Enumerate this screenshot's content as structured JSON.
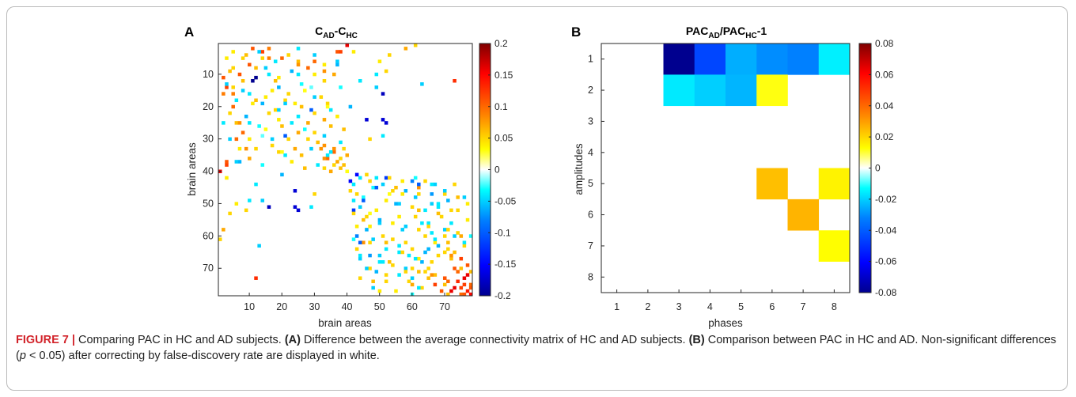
{
  "figure": {
    "panel_a_letter": "A",
    "panel_b_letter": "B",
    "caption": {
      "figure_label": "FIGURE 7 |",
      "intro": " Comparing PAC in HC and AD subjects. ",
      "part_a_label": "(A)",
      "part_a_text": " Difference between the average connectivity matrix of HC and AD subjects. ",
      "part_b_label": "(B)",
      "part_b_text_1": " Comparison between PAC in HC and AD. Non-significant differences (",
      "p_symbol": "p",
      "part_b_text_2": " < 0.05) after correcting by false-discovery rate are displayed in white."
    }
  },
  "chart_data": [
    {
      "panel": "A",
      "type": "heatmap",
      "title_main": "C",
      "title_sub1": "AD",
      "title_mid": "-C",
      "title_sub2": "HC",
      "xlabel": "brain areas",
      "ylabel": "brain areas",
      "xlim": [
        0.5,
        78.5
      ],
      "ylim": [
        0.5,
        78.5
      ],
      "x_ticks": [
        "10",
        "20",
        "30",
        "40",
        "50",
        "60",
        "70"
      ],
      "y_ticks": [
        "10",
        "20",
        "30",
        "40",
        "50",
        "60",
        "70"
      ],
      "colorbar_ticks": [
        "0.2",
        "0.15",
        "0.1",
        "0.05",
        "0",
        "-0.05",
        "-0.1",
        "-0.15",
        "-0.2"
      ],
      "clim": [
        -0.2,
        0.2
      ],
      "colormap": "jet-white-center",
      "note": "78x78 symmetric difference matrix; non-significant entries white",
      "cells": [
        [
          11,
          12,
          -0.2
        ],
        [
          2,
          11,
          0.11
        ],
        [
          3,
          14,
          0.12
        ],
        [
          5,
          16,
          0.09
        ],
        [
          7,
          10,
          0.11
        ],
        [
          4,
          22,
          0.05
        ],
        [
          6,
          25,
          0.06
        ],
        [
          8,
          28,
          0.1
        ],
        [
          9,
          33,
          0.08
        ],
        [
          10,
          36,
          0.07
        ],
        [
          1,
          40,
          0.16
        ],
        [
          3,
          38,
          0.12
        ],
        [
          6,
          30,
          0.1
        ],
        [
          12,
          8,
          0.06
        ],
        [
          14,
          5,
          0.05
        ],
        [
          15,
          17,
          0.04
        ],
        [
          18,
          21,
          0.05
        ],
        [
          20,
          26,
          0.06
        ],
        [
          22,
          30,
          0.05
        ],
        [
          24,
          33,
          0.07
        ],
        [
          26,
          35,
          0.06
        ],
        [
          28,
          30,
          0.05
        ],
        [
          30,
          28,
          0.06
        ],
        [
          32,
          33,
          0.08
        ],
        [
          34,
          36,
          0.1
        ],
        [
          36,
          38,
          0.05
        ],
        [
          13,
          3,
          -0.05
        ],
        [
          16,
          10,
          -0.04
        ],
        [
          19,
          14,
          -0.06
        ],
        [
          21,
          19,
          -0.05
        ],
        [
          25,
          23,
          -0.04
        ],
        [
          27,
          27,
          -0.03
        ],
        [
          29,
          21,
          -0.1
        ],
        [
          31,
          38,
          -0.04
        ],
        [
          8,
          15,
          -0.05
        ],
        [
          10,
          25,
          -0.04
        ],
        [
          17,
          30,
          -0.05
        ],
        [
          23,
          9,
          -0.06
        ],
        [
          26,
          13,
          -0.03
        ],
        [
          33,
          29,
          -0.05
        ],
        [
          35,
          34,
          -0.04
        ],
        [
          37,
          37,
          0.07
        ],
        [
          3,
          5,
          0.04
        ],
        [
          5,
          8,
          0.05
        ],
        [
          9,
          4,
          0.06
        ],
        [
          11,
          19,
          0.04
        ],
        [
          15,
          27,
          0.03
        ],
        [
          19,
          34,
          0.05
        ],
        [
          23,
          37,
          0.04
        ],
        [
          27,
          39,
          0.06
        ],
        [
          2,
          25,
          -0.04
        ],
        [
          4,
          30,
          -0.05
        ],
        [
          7,
          37,
          -0.06
        ],
        [
          14,
          38,
          -0.03
        ],
        [
          21,
          35,
          -0.04
        ],
        [
          28,
          25,
          0.07
        ],
        [
          31,
          31,
          0.06
        ],
        [
          36,
          33,
          0.08
        ],
        [
          38,
          36,
          0.09
        ],
        [
          39,
          38,
          0.06
        ],
        [
          40,
          35,
          0.07
        ],
        [
          39,
          33,
          0.05
        ],
        [
          25,
          7,
          0.08
        ],
        [
          12,
          33,
          0.05
        ],
        [
          6,
          18,
          -0.04
        ],
        [
          16,
          2,
          0.09
        ],
        [
          20,
          5,
          0.1
        ],
        [
          18,
          12,
          0.06
        ],
        [
          22,
          16,
          0.05
        ],
        [
          24,
          19,
          0.04
        ],
        [
          29,
          14,
          -0.02
        ],
        [
          32,
          17,
          0.05
        ],
        [
          34,
          20,
          0.03
        ],
        [
          30,
          10,
          0.04
        ],
        [
          40,
          40,
          0.03
        ],
        [
          7,
          33,
          0.04
        ],
        [
          37,
          3,
          0.11
        ],
        [
          37,
          6,
          -0.05
        ],
        [
          42,
          3,
          0.04
        ],
        [
          51,
          16,
          -0.18
        ],
        [
          52,
          25,
          -0.17
        ],
        [
          24,
          51,
          -0.17
        ],
        [
          20,
          41,
          -0.06
        ],
        [
          49,
          10,
          -0.04
        ],
        [
          58,
          2,
          0.07
        ],
        [
          61,
          1,
          0.05
        ],
        [
          73,
          12,
          0.13
        ],
        [
          63,
          13,
          -0.05
        ],
        [
          9,
          52,
          0.05
        ],
        [
          14,
          49,
          -0.05
        ],
        [
          12,
          44,
          -0.04
        ],
        [
          24,
          46,
          -0.17
        ],
        [
          30,
          47,
          0.05
        ],
        [
          6,
          50,
          0.04
        ],
        [
          4,
          53,
          0.05
        ],
        [
          29,
          51,
          -0.04
        ],
        [
          12,
          73,
          0.15
        ],
        [
          42,
          44,
          -0.04
        ],
        [
          43,
          47,
          0.05
        ],
        [
          44,
          51,
          -0.05
        ],
        [
          45,
          55,
          0.06
        ],
        [
          46,
          58,
          -0.06
        ],
        [
          47,
          62,
          0.05
        ],
        [
          48,
          45,
          -0.03
        ],
        [
          49,
          52,
          0.04
        ],
        [
          50,
          56,
          -0.05
        ],
        [
          51,
          60,
          0.05
        ],
        [
          52,
          64,
          -0.04
        ],
        [
          53,
          68,
          0.06
        ],
        [
          54,
          46,
          0.05
        ],
        [
          55,
          50,
          -0.06
        ],
        [
          56,
          54,
          0.04
        ],
        [
          57,
          58,
          -0.05
        ],
        [
          58,
          62,
          0.05
        ],
        [
          59,
          66,
          -0.04
        ],
        [
          60,
          70,
          0.05
        ],
        [
          61,
          48,
          -0.05
        ],
        [
          62,
          52,
          0.06
        ],
        [
          63,
          56,
          -0.04
        ],
        [
          64,
          60,
          0.05
        ],
        [
          65,
          64,
          -0.06
        ],
        [
          66,
          68,
          0.05
        ],
        [
          67,
          72,
          0.06
        ],
        [
          68,
          50,
          -0.04
        ],
        [
          69,
          54,
          0.05
        ],
        [
          70,
          58,
          -0.05
        ],
        [
          71,
          62,
          0.06
        ],
        [
          72,
          66,
          0.08
        ],
        [
          73,
          70,
          0.11
        ],
        [
          74,
          74,
          0.13
        ],
        [
          75,
          76,
          0.12
        ],
        [
          76,
          73,
          0.16
        ],
        [
          77,
          77,
          0.14
        ],
        [
          78,
          75,
          0.1
        ],
        [
          43,
          60,
          -0.08
        ],
        [
          45,
          49,
          -0.1
        ],
        [
          47,
          66,
          -0.07
        ],
        [
          49,
          71,
          -0.06
        ],
        [
          55,
          45,
          -0.05
        ],
        [
          59,
          74,
          0.05
        ],
        [
          62,
          45,
          0.08
        ],
        [
          64,
          71,
          0.05
        ],
        [
          66,
          50,
          -0.05
        ],
        [
          68,
          63,
          -0.06
        ],
        [
          70,
          47,
          0.05
        ],
        [
          41,
          43,
          -0.15
        ],
        [
          42,
          52,
          -0.12
        ],
        [
          44,
          62,
          -0.1
        ],
        [
          46,
          70,
          -0.05
        ],
        [
          48,
          74,
          0.06
        ],
        [
          50,
          77,
          0.04
        ],
        [
          52,
          72,
          0.05
        ],
        [
          54,
          69,
          0.04
        ],
        [
          56,
          65,
          -0.04
        ],
        [
          58,
          71,
          0.05
        ],
        [
          60,
          75,
          0.07
        ],
        [
          63,
          76,
          0.05
        ],
        [
          65,
          73,
          0.06
        ],
        [
          67,
          75,
          0.12
        ],
        [
          69,
          77,
          0.11
        ],
        [
          71,
          74,
          0.1
        ],
        [
          72,
          77,
          0.16
        ],
        [
          74,
          71,
          0.13
        ],
        [
          76,
          78,
          0.11
        ],
        [
          75,
          70,
          0.06
        ],
        [
          77,
          72,
          0.09
        ],
        [
          78,
          78,
          0.15
        ],
        [
          73,
          60,
          -0.05
        ],
        [
          76,
          62,
          -0.04
        ],
        [
          46,
          41,
          0.05
        ],
        [
          49,
          42,
          -0.04
        ],
        [
          53,
          42,
          0.05
        ],
        [
          57,
          43,
          0.04
        ],
        [
          61,
          42,
          -0.03
        ],
        [
          64,
          43,
          0.05
        ],
        [
          67,
          44,
          -0.05
        ],
        [
          44,
          66,
          -0.04
        ],
        [
          47,
          53,
          0.03
        ],
        [
          51,
          68,
          -0.04
        ],
        [
          54,
          61,
          0.05
        ],
        [
          57,
          47,
          0.04
        ],
        [
          60,
          51,
          -0.05
        ],
        [
          62,
          67,
          0.04
        ],
        [
          65,
          57,
          0.05
        ],
        [
          67,
          61,
          -0.04
        ],
        [
          70,
          65,
          0.05
        ],
        [
          72,
          56,
          -0.04
        ],
        [
          74,
          52,
          0.05
        ],
        [
          76,
          48,
          -0.05
        ],
        [
          77,
          55,
          0.04
        ],
        [
          78,
          60,
          -0.03
        ],
        [
          73,
          44,
          0.05
        ],
        [
          71,
          78,
          0.06
        ]
      ]
    },
    {
      "panel": "B",
      "type": "heatmap",
      "title_main": "PAC",
      "title_sub1": "AD",
      "title_mid": "/PAC",
      "title_sub2": "HC",
      "title_tail": "-1",
      "xlabel": "phases",
      "ylabel": "amplitudes",
      "x_ticks": [
        "1",
        "2",
        "3",
        "4",
        "5",
        "6",
        "7",
        "8"
      ],
      "y_ticks": [
        "1",
        "2",
        "3",
        "4",
        "5",
        "6",
        "7",
        "8"
      ],
      "colorbar_ticks": [
        "0.08",
        "0.06",
        "0.04",
        "0.02",
        "0",
        "-0.02",
        "-0.04",
        "-0.06",
        "-0.08"
      ],
      "clim": [
        -0.08,
        0.08
      ],
      "colormap": "jet-white-center",
      "cells": [
        [
          1,
          3,
          -0.08
        ],
        [
          1,
          4,
          -0.045
        ],
        [
          1,
          5,
          -0.025
        ],
        [
          1,
          6,
          -0.03
        ],
        [
          1,
          7,
          -0.032
        ],
        [
          1,
          8,
          -0.015
        ],
        [
          2,
          3,
          -0.016
        ],
        [
          2,
          4,
          -0.02
        ],
        [
          2,
          5,
          -0.024
        ],
        [
          2,
          6,
          0.012
        ],
        [
          5,
          6,
          0.024
        ],
        [
          5,
          8,
          0.015
        ],
        [
          6,
          7,
          0.026
        ],
        [
          7,
          8,
          0.013
        ]
      ]
    }
  ]
}
